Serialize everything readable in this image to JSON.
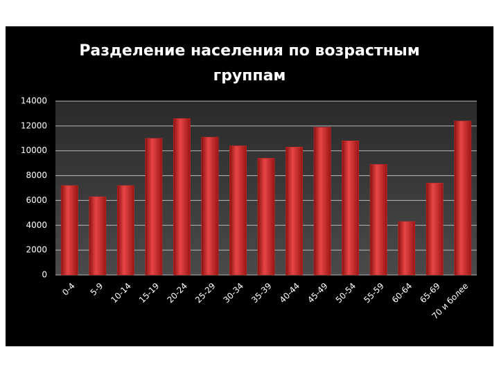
{
  "chart_data": {
    "type": "bar",
    "title": "Разделение населения по возрастным группам",
    "categories": [
      "0-4",
      "5-9",
      "10-14",
      "15-19",
      "20-24",
      "25-29",
      "30-34",
      "35-39",
      "40-44",
      "45-49",
      "50-54",
      "55-59",
      "60-64",
      "65-69",
      "70 и более"
    ],
    "values": [
      7200,
      6300,
      7200,
      11000,
      12600,
      11100,
      10400,
      9400,
      10300,
      11900,
      10800,
      8900,
      4300,
      7400,
      12400
    ],
    "color": "#d42a2a",
    "ylim": [
      0,
      14000
    ],
    "yticks": [
      0,
      2000,
      4000,
      6000,
      8000,
      10000,
      12000,
      14000
    ],
    "grid": true
  }
}
